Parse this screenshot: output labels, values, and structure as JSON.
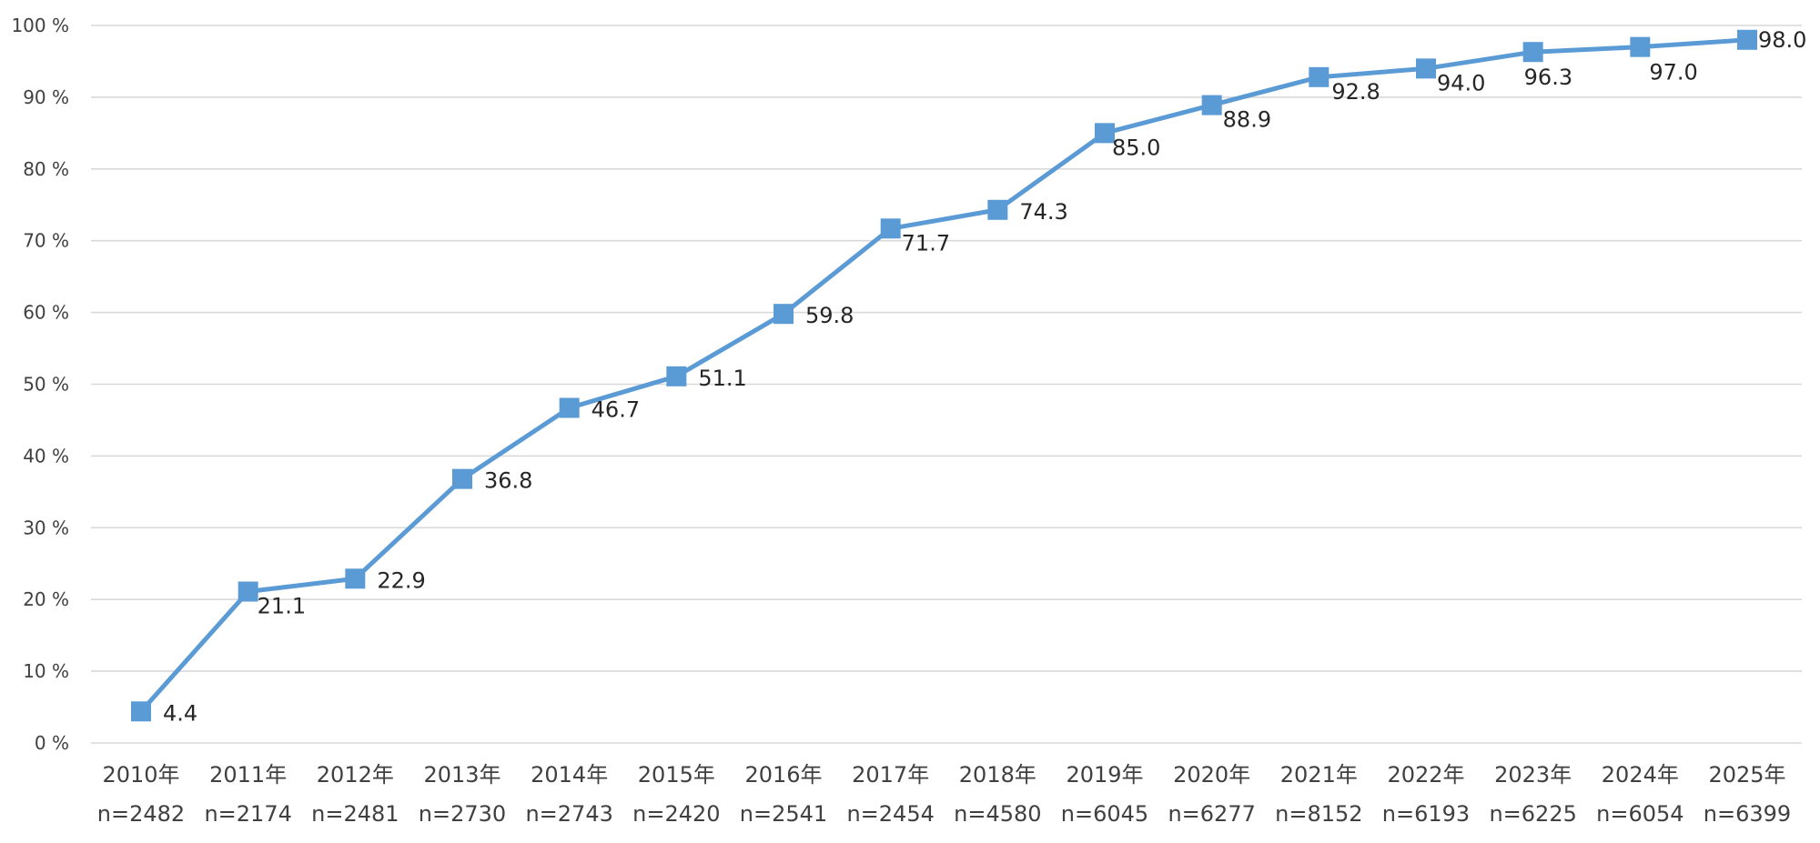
{
  "chart_data": {
    "type": "line",
    "title": "",
    "xlabel": "",
    "ylabel": "",
    "categories": [
      "2010年",
      "2011年",
      "2012年",
      "2013年",
      "2014年",
      "2015年",
      "2016年",
      "2017年",
      "2018年",
      "2019年",
      "2020年",
      "2021年",
      "2022年",
      "2023年",
      "2024年",
      "2025年"
    ],
    "category_sublabels": [
      "n=2482",
      "n=2174",
      "n=2481",
      "n=2730",
      "n=2743",
      "n=2420",
      "n=2541",
      "n=2454",
      "n=4580",
      "n=6045",
      "n=6277",
      "n=8152",
      "n=6193",
      "n=6225",
      "n=6054",
      "n=6399"
    ],
    "values": [
      4.4,
      21.1,
      22.9,
      36.8,
      46.7,
      51.1,
      59.8,
      71.7,
      74.3,
      85.0,
      88.9,
      92.8,
      94.0,
      96.3,
      97.0,
      98.0
    ],
    "data_labels": [
      "4.4",
      "21.1",
      "22.9",
      "36.8",
      "46.7",
      "51.1",
      "59.8",
      "71.7",
      "74.3",
      "85.0",
      "88.9",
      "92.8",
      "94.0",
      "96.3",
      "97.0",
      "98.0"
    ],
    "y_tick_labels": [
      "0 %",
      "10 %",
      "20 %",
      "30 %",
      "40 %",
      "50 %",
      "60 %",
      "70 %",
      "80 %",
      "90 %",
      "100 %"
    ],
    "ylim": [
      0,
      100
    ],
    "y_step": 10,
    "grid": true,
    "legend": "none",
    "marker": "square",
    "colors": {
      "series": "#5b9bd5",
      "grid": "#d9d9d9",
      "tick_text": "#404040",
      "label_text": "#262626"
    }
  }
}
